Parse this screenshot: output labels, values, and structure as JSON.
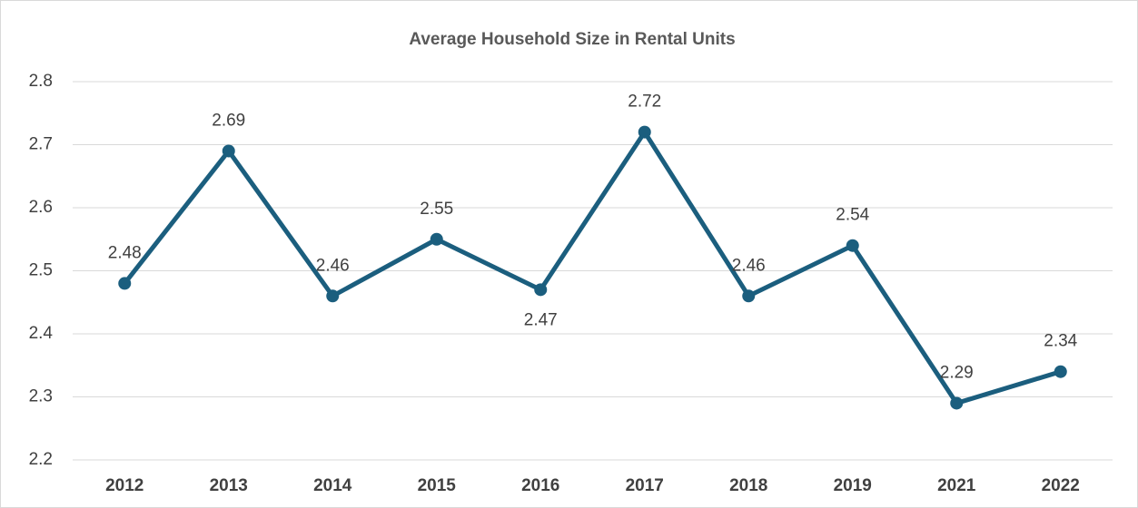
{
  "chart_data": {
    "type": "line",
    "title": "Average Household Size in Rental Units",
    "categories": [
      "2012",
      "2013",
      "2014",
      "2015",
      "2016",
      "2017",
      "2018",
      "2019",
      "2021",
      "2022"
    ],
    "values": [
      2.48,
      2.69,
      2.46,
      2.55,
      2.47,
      2.72,
      2.46,
      2.54,
      2.29,
      2.34
    ],
    "color": "#1b5e7e",
    "ylim": [
      2.2,
      2.8
    ],
    "yticks": [
      2.2,
      2.3,
      2.4,
      2.5,
      2.6,
      2.7,
      2.8
    ],
    "grid": true
  }
}
